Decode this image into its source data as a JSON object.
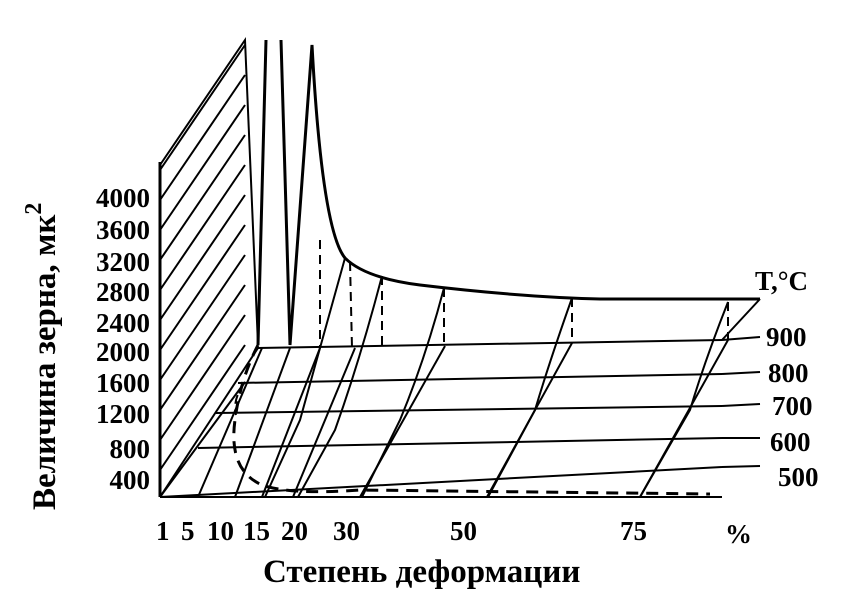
{
  "chart_data": {
    "type": "surface3d",
    "ylabel": "Величина зерна, мк",
    "ylabel_superscript": "2",
    "xlabel": "Степень деформации",
    "x_unit": "%",
    "z_axis_label": "T,°C",
    "y_ticks": [
      "400",
      "800",
      "1200",
      "1600",
      "2000",
      "2400",
      "2800",
      "3200",
      "3600",
      "4000"
    ],
    "x_ticks": [
      "1",
      "5",
      "10",
      "15",
      "20",
      "30",
      "50",
      "75"
    ],
    "temperatures": [
      "500",
      "600",
      "700",
      "800",
      "900"
    ],
    "x_range": [
      1,
      90
    ],
    "y_range": [
      0,
      4400
    ],
    "grid": true
  }
}
